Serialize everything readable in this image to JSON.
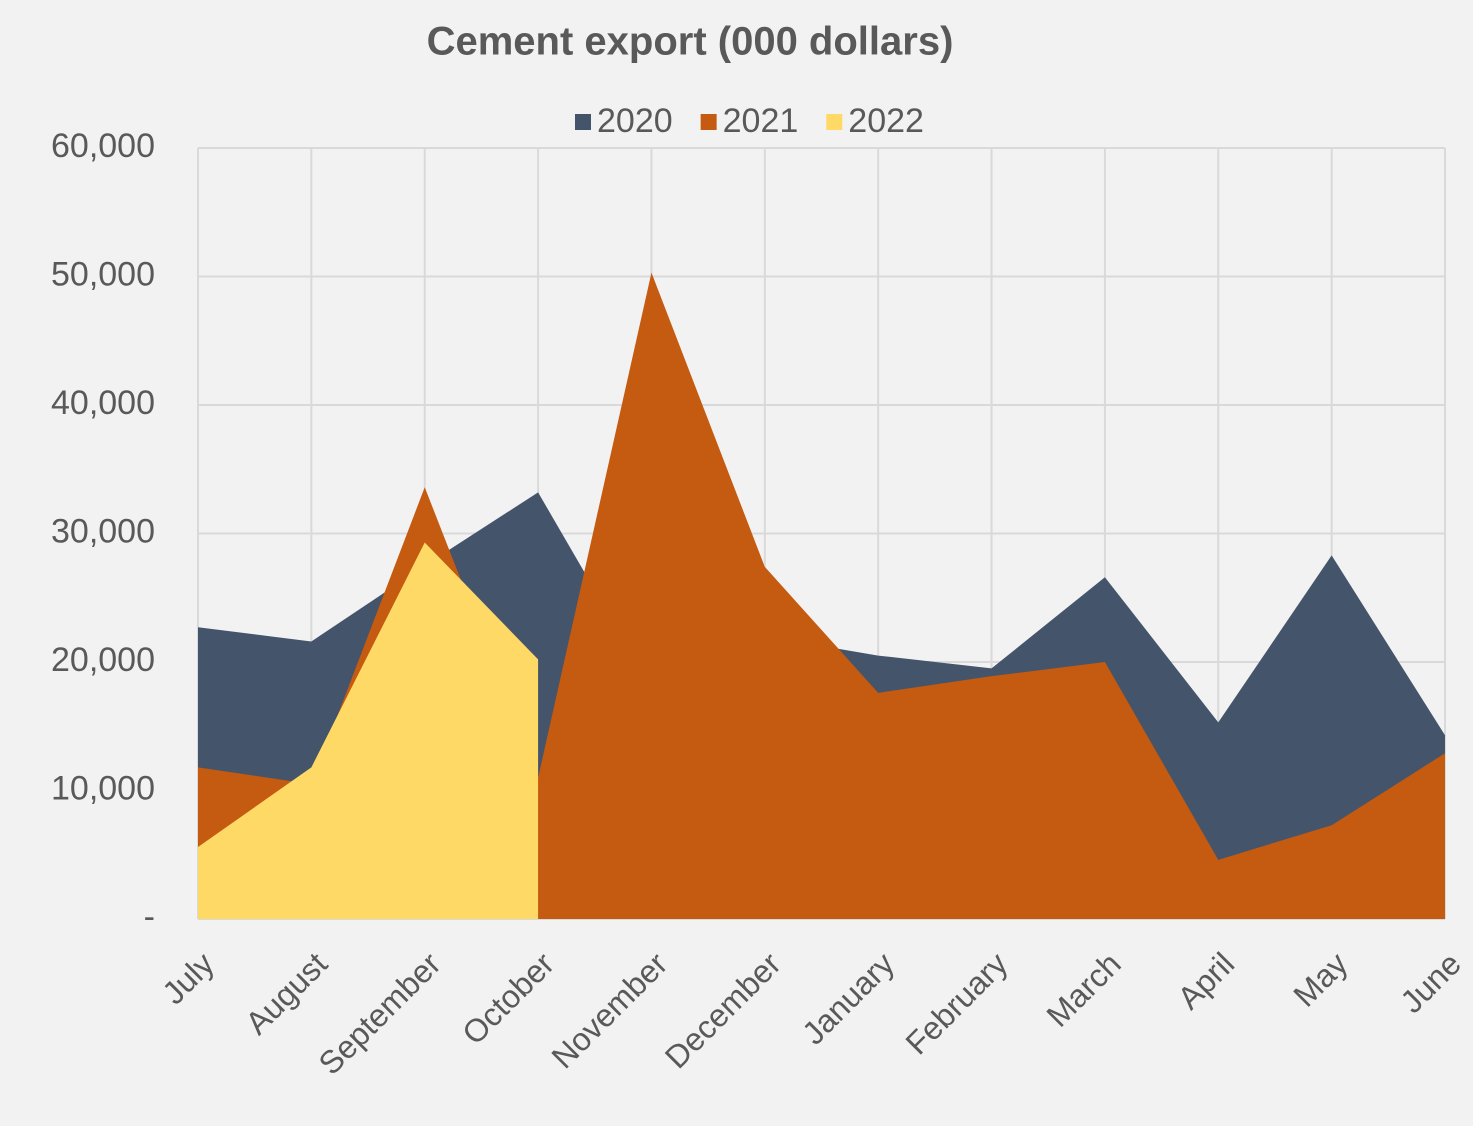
{
  "chart_data": {
    "type": "area",
    "title": "Cement export (000 dollars)",
    "categories": [
      "July",
      "August",
      "September",
      "October",
      "November",
      "December",
      "January",
      "February",
      "March",
      "April",
      "May",
      "June"
    ],
    "series": [
      {
        "name": "2020",
        "color": "#44546a",
        "values": [
          22700,
          21600,
          27500,
          33200,
          18000,
          22000,
          20500,
          19500,
          26600,
          15300,
          28300,
          14300
        ]
      },
      {
        "name": "2021",
        "color": "#c55a11",
        "values": [
          11800,
          10500,
          33600,
          11000,
          50300,
          27400,
          17600,
          18900,
          20000,
          4600,
          7300,
          12900
        ]
      },
      {
        "name": "2022",
        "color": "#ffd966",
        "values": [
          5600,
          11800,
          29300,
          20200,
          null,
          null,
          null,
          null,
          null,
          null,
          null,
          null
        ]
      }
    ],
    "ylim": [
      0,
      60000
    ],
    "yticks": [
      {
        "value": 0,
        "label": "-"
      },
      {
        "value": 10000,
        "label": "10,000"
      },
      {
        "value": 20000,
        "label": "20,000"
      },
      {
        "value": 30000,
        "label": "30,000"
      },
      {
        "value": 40000,
        "label": "40,000"
      },
      {
        "value": 50000,
        "label": "50,000"
      },
      {
        "value": 60000,
        "label": "60,000"
      }
    ],
    "grid": true,
    "legend": "top"
  }
}
